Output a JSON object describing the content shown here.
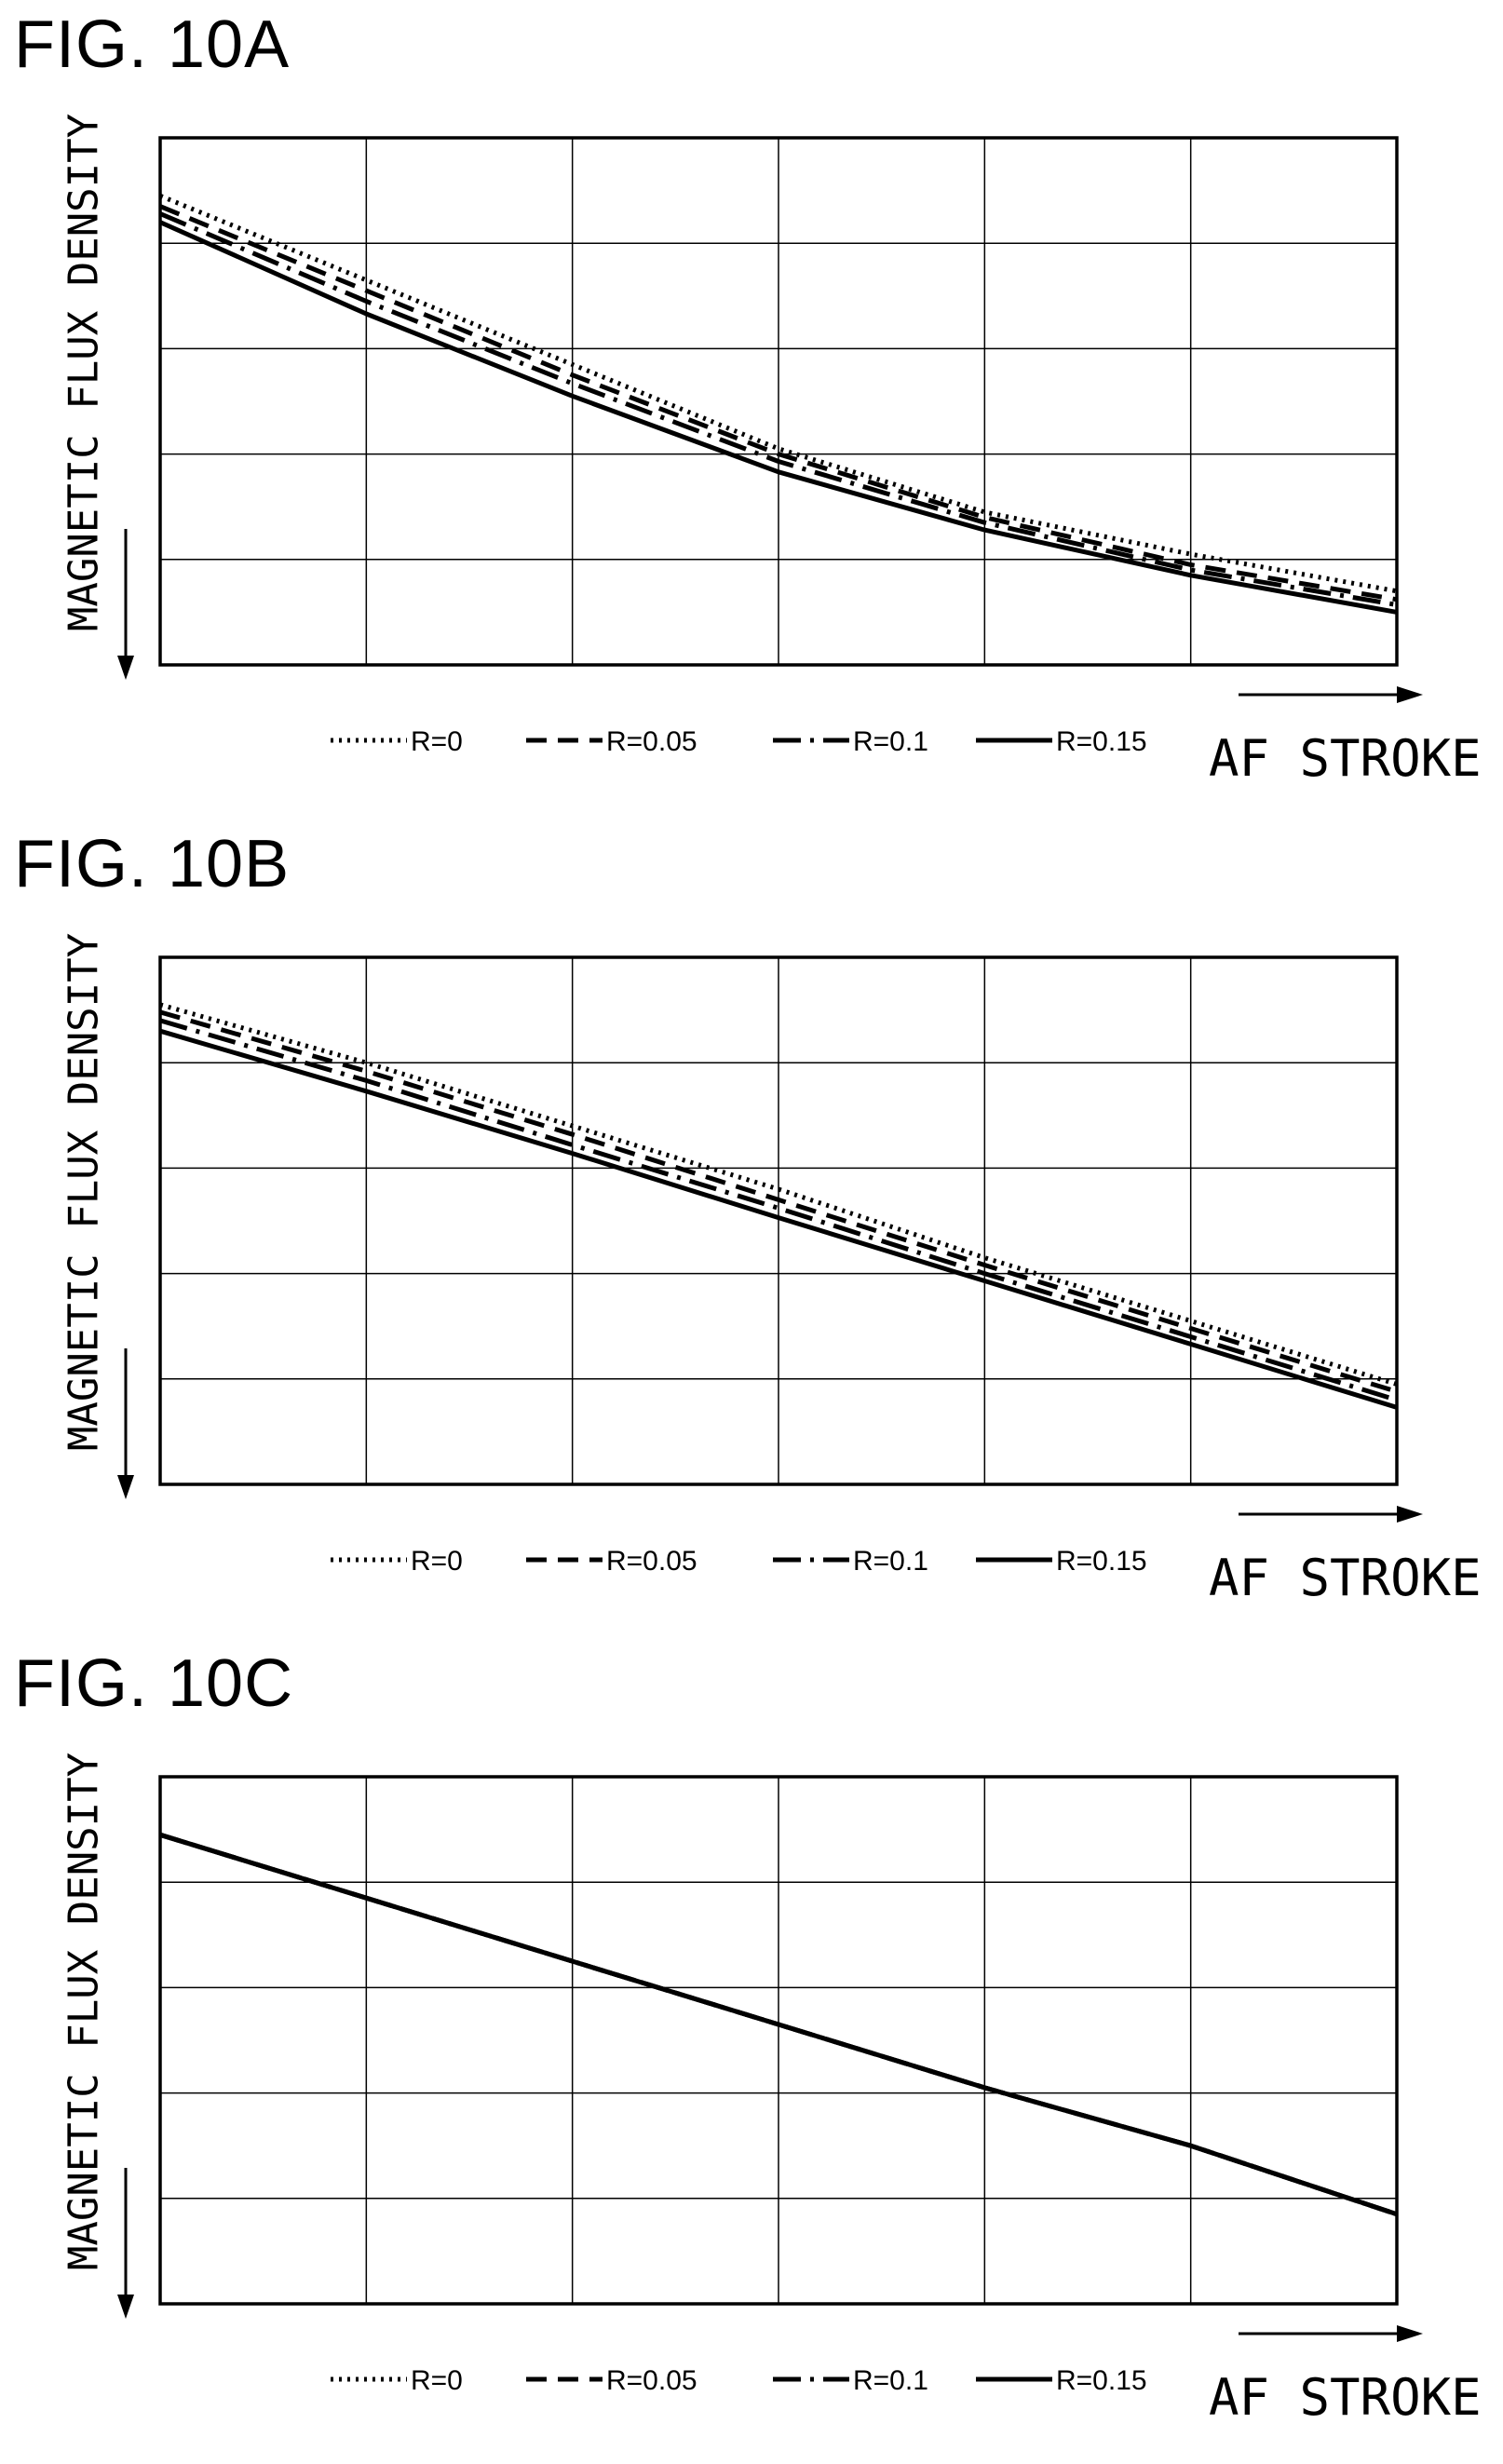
{
  "figures": [
    {
      "id": "a",
      "title": "FIG. 10A",
      "chart_data": {
        "type": "line",
        "ylabel": "MAGNETIC FLUX DENSITY",
        "xlabel": "AF STROKE",
        "grid": true,
        "axis_direction": {
          "x": "increasing to the right (arrow)",
          "y": "increasing downward (arrow)"
        },
        "xlim": [
          0,
          6
        ],
        "ylim": [
          0,
          5
        ],
        "legend_position": "bottom",
        "series": [
          {
            "name": "R=0",
            "style": "dotted",
            "x": [
              0,
              1,
              2,
              3,
              4,
              5,
              6
            ],
            "y": [
              0.55,
              1.35,
              2.15,
              2.95,
              3.55,
              3.95,
              4.3
            ]
          },
          {
            "name": "R=0.05",
            "style": "dashed",
            "x": [
              0,
              1,
              2,
              3,
              4,
              5,
              6
            ],
            "y": [
              0.65,
              1.45,
              2.25,
              3.0,
              3.6,
              4.05,
              4.38
            ]
          },
          {
            "name": "R=0.1",
            "style": "dashdot",
            "x": [
              0,
              1,
              2,
              3,
              4,
              5,
              6
            ],
            "y": [
              0.72,
              1.55,
              2.33,
              3.07,
              3.65,
              4.1,
              4.43
            ]
          },
          {
            "name": "R=0.15",
            "style": "solid",
            "x": [
              0,
              1,
              2,
              3,
              4,
              5,
              6
            ],
            "y": [
              0.8,
              1.67,
              2.45,
              3.17,
              3.72,
              4.15,
              4.5
            ]
          }
        ]
      }
    },
    {
      "id": "b",
      "title": "FIG. 10B",
      "chart_data": {
        "type": "line",
        "ylabel": "MAGNETIC FLUX DENSITY",
        "xlabel": "AF STROKE",
        "grid": true,
        "axis_direction": {
          "x": "increasing to the right (arrow)",
          "y": "increasing downward (arrow)"
        },
        "xlim": [
          0,
          6
        ],
        "ylim": [
          0,
          5
        ],
        "legend_position": "bottom",
        "series": [
          {
            "name": "R=0",
            "style": "dotted",
            "x": [
              0,
              1,
              2,
              3,
              4,
              5,
              6
            ],
            "y": [
              0.45,
              1.0,
              1.6,
              2.2,
              2.85,
              3.45,
              4.05
            ]
          },
          {
            "name": "R=0.05",
            "style": "dashed",
            "x": [
              0,
              1,
              2,
              3,
              4,
              5,
              6
            ],
            "y": [
              0.52,
              1.08,
              1.68,
              2.3,
              2.92,
              3.52,
              4.12
            ]
          },
          {
            "name": "R=0.1",
            "style": "dashdot",
            "x": [
              0,
              1,
              2,
              3,
              4,
              5,
              6
            ],
            "y": [
              0.6,
              1.17,
              1.78,
              2.38,
              3.0,
              3.6,
              4.2
            ]
          },
          {
            "name": "R=0.15",
            "style": "solid",
            "x": [
              0,
              1,
              2,
              3,
              4,
              5,
              6
            ],
            "y": [
              0.7,
              1.27,
              1.86,
              2.47,
              3.07,
              3.67,
              4.27
            ]
          }
        ]
      }
    },
    {
      "id": "c",
      "title": "FIG. 10C",
      "chart_data": {
        "type": "line",
        "ylabel": "MAGNETIC FLUX DENSITY",
        "xlabel": "AF STROKE",
        "grid": true,
        "axis_direction": {
          "x": "increasing to the right (arrow)",
          "y": "increasing downward (arrow)"
        },
        "xlim": [
          0,
          6
        ],
        "ylim": [
          0,
          5
        ],
        "legend_position": "bottom",
        "series": [
          {
            "name": "R=0",
            "style": "dotted",
            "x": [
              0,
              1,
              2,
              3,
              4,
              5,
              6
            ],
            "y": [
              0.55,
              1.15,
              1.75,
              2.35,
              2.95,
              3.5,
              4.15
            ]
          },
          {
            "name": "R=0.05",
            "style": "dashed",
            "x": [
              0,
              1,
              2,
              3,
              4,
              5,
              6
            ],
            "y": [
              0.55,
              1.15,
              1.75,
              2.35,
              2.95,
              3.5,
              4.15
            ]
          },
          {
            "name": "R=0.1",
            "style": "dashdot",
            "x": [
              0,
              1,
              2,
              3,
              4,
              5,
              6
            ],
            "y": [
              0.55,
              1.15,
              1.75,
              2.35,
              2.95,
              3.5,
              4.15
            ]
          },
          {
            "name": "R=0.15",
            "style": "solid",
            "x": [
              0,
              1,
              2,
              3,
              4,
              5,
              6
            ],
            "y": [
              0.55,
              1.15,
              1.75,
              2.35,
              2.95,
              3.5,
              4.15
            ]
          }
        ]
      }
    }
  ]
}
